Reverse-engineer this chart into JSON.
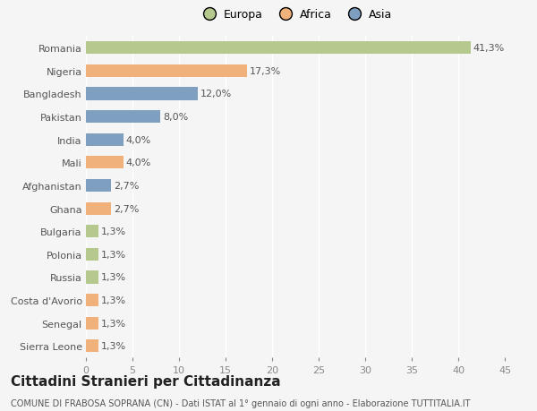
{
  "countries": [
    "Romania",
    "Nigeria",
    "Bangladesh",
    "Pakistan",
    "India",
    "Mali",
    "Afghanistan",
    "Ghana",
    "Bulgaria",
    "Polonia",
    "Russia",
    "Costa d'Avorio",
    "Senegal",
    "Sierra Leone"
  ],
  "values": [
    41.3,
    17.3,
    12.0,
    8.0,
    4.0,
    4.0,
    2.7,
    2.7,
    1.3,
    1.3,
    1.3,
    1.3,
    1.3,
    1.3
  ],
  "labels": [
    "41,3%",
    "17,3%",
    "12,0%",
    "8,0%",
    "4,0%",
    "4,0%",
    "2,7%",
    "2,7%",
    "1,3%",
    "1,3%",
    "1,3%",
    "1,3%",
    "1,3%",
    "1,3%"
  ],
  "colors": [
    "#b5c98e",
    "#f0b27a",
    "#7f9fc0",
    "#7f9fc0",
    "#7f9fc0",
    "#f0b27a",
    "#7f9fc0",
    "#f0b27a",
    "#b5c98e",
    "#b5c98e",
    "#b5c98e",
    "#f0b27a",
    "#f0b27a",
    "#f0b27a"
  ],
  "legend": [
    {
      "label": "Europa",
      "color": "#b5c98e"
    },
    {
      "label": "Africa",
      "color": "#f0b27a"
    },
    {
      "label": "Asia",
      "color": "#7f9fc0"
    }
  ],
  "xlim": [
    0,
    45
  ],
  "xticks": [
    0,
    5,
    10,
    15,
    20,
    25,
    30,
    35,
    40,
    45
  ],
  "title": "Cittadini Stranieri per Cittadinanza",
  "subtitle": "COMUNE DI FRABOSA SOPRANA (CN) - Dati ISTAT al 1° gennaio di ogni anno - Elaborazione TUTTITALIA.IT",
  "background_color": "#f5f5f5",
  "bar_height": 0.55,
  "label_fontsize": 8,
  "tick_fontsize": 8,
  "title_fontsize": 11,
  "subtitle_fontsize": 7
}
